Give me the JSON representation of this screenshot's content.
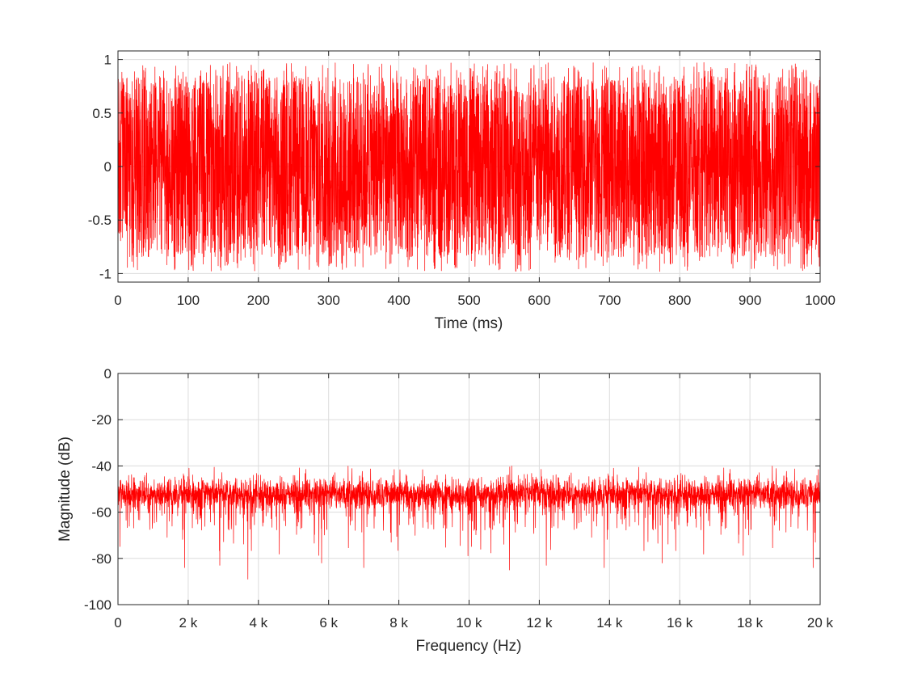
{
  "chart_data": [
    {
      "type": "line",
      "title": "",
      "xlabel": "Time (ms)",
      "ylabel": "",
      "xlim": [
        0,
        1000
      ],
      "ylim": [
        -1.08,
        1.08
      ],
      "x_ticks": [
        0,
        100,
        200,
        300,
        400,
        500,
        600,
        700,
        800,
        900,
        1000
      ],
      "x_tick_labels": [
        "0",
        "100",
        "200",
        "300",
        "400",
        "500",
        "600",
        "700",
        "800",
        "900",
        "1000"
      ],
      "y_ticks": [
        1,
        0.5,
        0,
        -0.5,
        -1
      ],
      "y_tick_labels": [
        "1",
        "0.5",
        "0",
        "-0.5",
        "-1"
      ],
      "grid": true,
      "legend": "none",
      "series": [
        {
          "color": "#ff0000",
          "x": [
            0,
            50,
            100,
            150,
            200,
            250,
            300,
            350,
            400,
            450,
            500,
            550,
            600,
            650,
            700,
            750,
            800,
            850,
            900,
            950,
            1000
          ],
          "envelope_max": [
            0.97,
            0.98,
            0.96,
            0.98,
            0.96,
            0.97,
            0.99,
            0.97,
            0.96,
            0.98,
            0.96,
            0.97,
            0.98,
            0.96,
            0.99,
            0.97,
            0.96,
            0.98,
            0.97,
            0.96,
            0.98
          ],
          "envelope_min": [
            -0.97,
            -0.98,
            -0.99,
            -0.97,
            -0.98,
            -0.96,
            -0.99,
            -0.97,
            -0.96,
            -0.98,
            -0.97,
            -0.99,
            -0.98,
            -0.96,
            -0.97,
            -0.98,
            -0.99,
            -0.96,
            -0.97,
            -0.98,
            -0.97
          ],
          "typical_peak": 0.85,
          "description": "uniform white noise"
        }
      ]
    },
    {
      "type": "line",
      "title": "",
      "xlabel": "Frequency (Hz)",
      "ylabel": "Magnitude (dB)",
      "xlim": [
        0,
        20000
      ],
      "ylim": [
        -100,
        0
      ],
      "x_ticks": [
        0,
        2000,
        4000,
        6000,
        8000,
        10000,
        12000,
        14000,
        16000,
        18000,
        20000
      ],
      "x_tick_labels": [
        "0",
        "2 k",
        "4 k",
        "6 k",
        "8 k",
        "10 k",
        "12 k",
        "14 k",
        "16 k",
        "18 k",
        "20 k"
      ],
      "y_ticks": [
        0,
        -20,
        -40,
        -60,
        -80,
        -100
      ],
      "y_tick_labels": [
        "0",
        "-20",
        "-40",
        "-60",
        "-80",
        "-100"
      ],
      "grid": true,
      "legend": "none",
      "series": [
        {
          "color": "#ff0000",
          "band_center_db": -52,
          "band_top_db": -44,
          "band_bottom_db": -62,
          "max_db": -40,
          "dips": [
            {
              "freq": 1900,
              "db": -84
            },
            {
              "freq": 2900,
              "db": -83
            },
            {
              "freq": 3700,
              "db": -89
            },
            {
              "freq": 5800,
              "db": -82
            },
            {
              "freq": 7000,
              "db": -84
            },
            {
              "freq": 11150,
              "db": -85
            },
            {
              "freq": 12200,
              "db": -83
            },
            {
              "freq": 13850,
              "db": -84
            },
            {
              "freq": 15500,
              "db": -82
            },
            {
              "freq": 19800,
              "db": -84
            }
          ]
        }
      ]
    }
  ]
}
